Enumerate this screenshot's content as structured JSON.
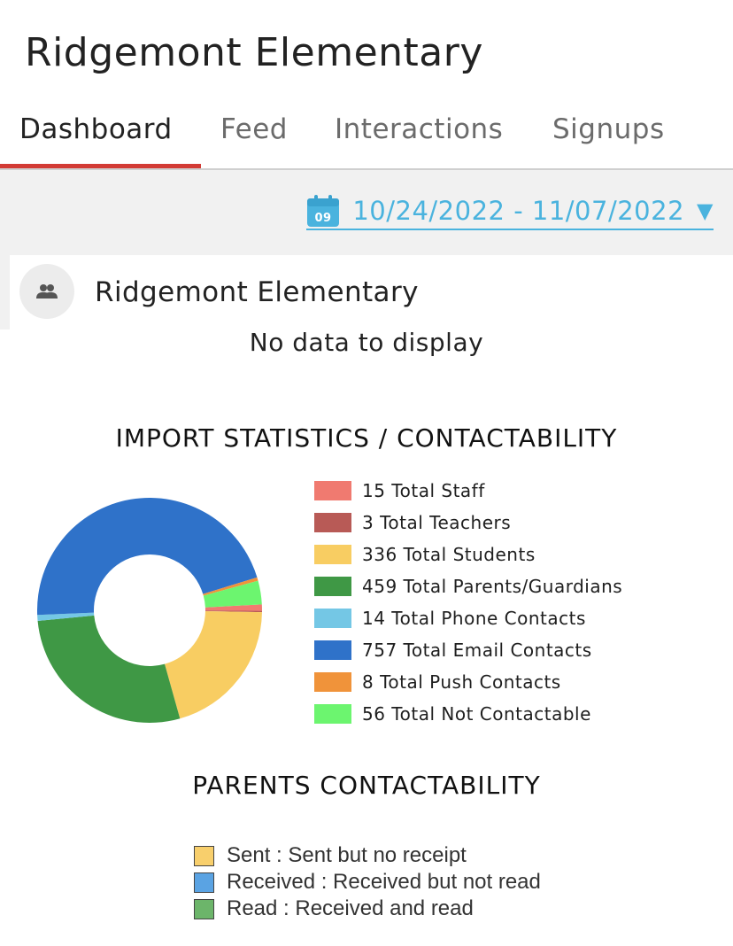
{
  "header": {
    "title": "Ridgemont Elementary"
  },
  "tabs": [
    {
      "label": "Dashboard",
      "active": true
    },
    {
      "label": "Feed",
      "active": false
    },
    {
      "label": "Interactions",
      "active": false
    },
    {
      "label": "Signups",
      "active": false
    }
  ],
  "date_filter": {
    "calendar_day": "09",
    "range": "10/24/2022 - 11/07/2022",
    "caret": "▼"
  },
  "group": {
    "name": "Ridgemont Elementary",
    "icon": "group-icon",
    "empty_message": "No data to display"
  },
  "import_statistics": {
    "title": "IMPORT STATISTICS / CONTACTABILITY",
    "chart_data": {
      "type": "pie",
      "title": "IMPORT STATISTICS / CONTACTABILITY",
      "legend_position": "right",
      "slices": [
        {
          "label": "15 Total Staff",
          "value": 15,
          "color": "#f07a70"
        },
        {
          "label": "3 Total Teachers",
          "value": 3,
          "color": "#b85a56"
        },
        {
          "label": "336 Total Students",
          "value": 336,
          "color": "#f8cd62"
        },
        {
          "label": "459 Total Parents/Guardians",
          "value": 459,
          "color": "#3f9845"
        },
        {
          "label": "14 Total Phone Contacts",
          "value": 14,
          "color": "#74c7e5"
        },
        {
          "label": "757 Total Email Contacts",
          "value": 757,
          "color": "#2f72c9"
        },
        {
          "label": "8 Total Push Contacts",
          "value": 8,
          "color": "#f0933a"
        },
        {
          "label": "56 Total Not Contactable",
          "value": 56,
          "color": "#6cf56f"
        }
      ]
    }
  },
  "parents_contactability": {
    "title": "PARENTS CONTACTABILITY",
    "legend": [
      {
        "label": "Sent : Sent but no receipt",
        "color": "#f8cf6c"
      },
      {
        "label": "Received : Received but not read",
        "color": "#5aa3e3"
      },
      {
        "label": "Read : Received and read",
        "color": "#6cb56a"
      }
    ]
  }
}
